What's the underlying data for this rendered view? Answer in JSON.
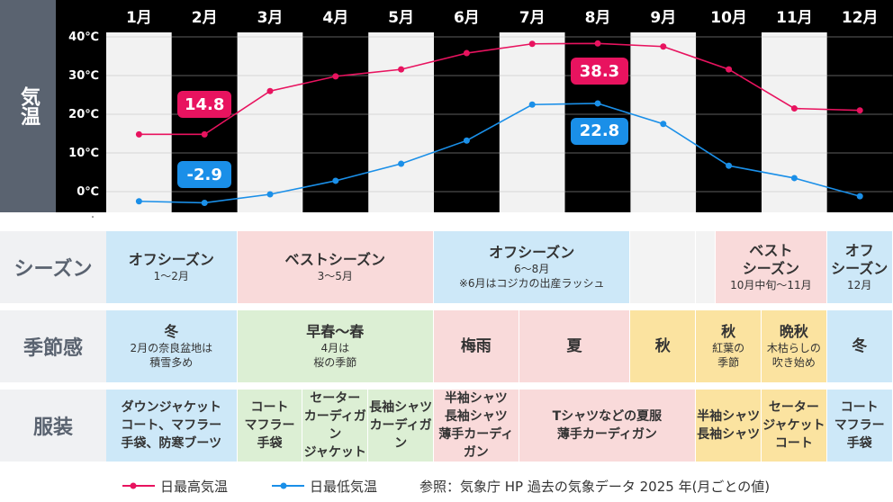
{
  "chart_data": {
    "type": "line",
    "ylabel": "気温",
    "categories": [
      "1月",
      "2月",
      "3月",
      "4月",
      "5月",
      "6月",
      "7月",
      "8月",
      "9月",
      "10月",
      "11月",
      "12月"
    ],
    "y_ticks": [
      "40℃",
      "30℃",
      "20℃",
      "10℃",
      "0℃"
    ],
    "ylim": [
      -5,
      40
    ],
    "series": [
      {
        "name": "日最高気温",
        "color": "#e8135f",
        "values": [
          14.8,
          14.8,
          26.0,
          29.8,
          31.6,
          35.8,
          38.2,
          38.3,
          37.5,
          31.6,
          21.5,
          21.0
        ]
      },
      {
        "name": "日最低気温",
        "color": "#1a8fe8",
        "values": [
          -2.5,
          -2.9,
          -0.7,
          2.8,
          7.2,
          13.2,
          22.5,
          22.8,
          17.5,
          6.7,
          3.5,
          -1.2
        ]
      }
    ],
    "annotations": [
      {
        "text": "14.8",
        "series": 0,
        "index": 1
      },
      {
        "text": "-2.9",
        "series": 1,
        "index": 1
      },
      {
        "text": "38.3",
        "series": 0,
        "index": 7
      },
      {
        "text": "22.8",
        "series": 1,
        "index": 7
      }
    ],
    "grid": true
  },
  "rows": {
    "season": {
      "label": "シーズン",
      "cells": [
        {
          "title": "オフシーズン",
          "sub": "1〜2月",
          "color": "blue"
        },
        {
          "title": "ベストシーズン",
          "sub": "3〜5月",
          "color": "pink"
        },
        {
          "title": "オフシーズン",
          "sub": "6〜8月\n※6月はコジカの出産ラッシュ",
          "color": "blue"
        },
        {
          "title": "",
          "sub": "",
          "color": "grey"
        },
        {
          "title": "",
          "sub": "",
          "color": "grey"
        },
        {
          "title": "ベスト\nシーズン",
          "sub": "10月中旬〜11月",
          "color": "pink"
        },
        {
          "title": "オフ\nシーズン",
          "sub": "12月",
          "color": "blue"
        }
      ]
    },
    "feel": {
      "label": "季節感",
      "cells": [
        {
          "title": "冬",
          "sub": "2月の奈良盆地は\n積雪多め",
          "color": "blue"
        },
        {
          "title": "早春〜春",
          "sub": "4月は\n桜の季節",
          "color": "green"
        },
        {
          "title": "梅雨",
          "sub": "",
          "color": "pink"
        },
        {
          "title": "夏",
          "sub": "",
          "color": "pink"
        },
        {
          "title": "秋",
          "sub": "",
          "color": "yellow"
        },
        {
          "title": "秋",
          "sub": "紅葉の\n季節",
          "color": "yellow"
        },
        {
          "title": "晩秋",
          "sub": "木枯らしの\n吹き始め",
          "color": "yellow"
        },
        {
          "title": "冬",
          "sub": "",
          "color": "blue"
        }
      ]
    },
    "clothes": {
      "label": "服装",
      "cells": [
        {
          "text": "ダウンジャケット\nコート、マフラー\n手袋、防寒ブーツ",
          "color": "blue"
        },
        {
          "text": "コート\nマフラー\n手袋",
          "color": "green"
        },
        {
          "text": "セーター\nカーディガン\nジャケット",
          "color": "green"
        },
        {
          "text": "長袖シャツ\nカーディガン",
          "color": "green"
        },
        {
          "text": "半袖シャツ\n長袖シャツ\n薄手カーディガン",
          "color": "pink"
        },
        {
          "text": "Tシャツなどの夏服\n薄手カーディガン",
          "color": "pink"
        },
        {
          "text": "半袖シャツ\n長袖シャツ",
          "color": "yellow"
        },
        {
          "text": "セーター\nジャケット\nコート",
          "color": "yellow"
        },
        {
          "text": "コート\nマフラー\n手袋",
          "color": "blue"
        }
      ]
    }
  },
  "legend": {
    "max_label": "日最高気温",
    "min_label": "日最低気温",
    "source": "参照：気象庁 HP 過去の気象データ 2025 年(月ごとの値)"
  }
}
